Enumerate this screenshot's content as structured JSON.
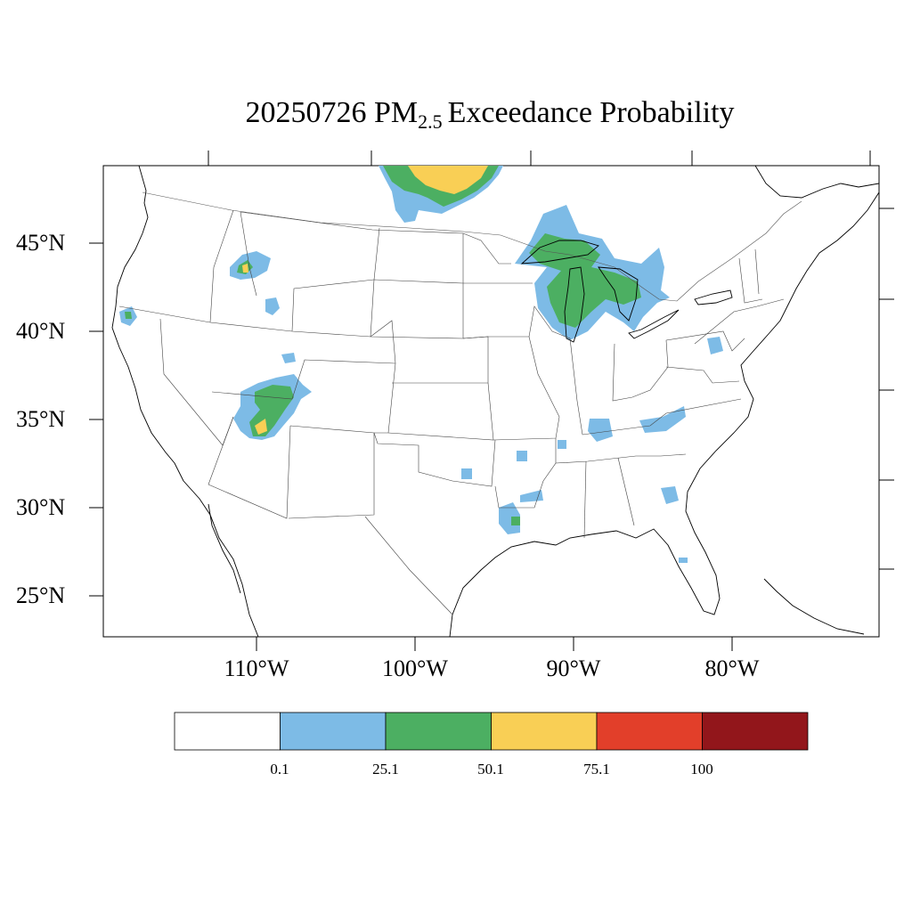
{
  "title": {
    "date": "20250726",
    "species": "PM",
    "subscript": "2.5",
    "rest": "Exceedance Probability"
  },
  "lat_labels": [
    "45°N",
    "40°N",
    "35°N",
    "30°N",
    "25°N"
  ],
  "lon_labels": [
    "110°W",
    "100°W",
    "90°W",
    "80°W"
  ],
  "colorbar": {
    "colors": [
      "#ffffff",
      "#7dbbe6",
      "#4caf62",
      "#f9cf55",
      "#e23f2a",
      "#92161b"
    ],
    "labels": [
      "0.1",
      "25.1",
      "50.1",
      "75.1",
      "100"
    ]
  },
  "legend_bins": [
    {
      "range": "0–0.1",
      "color": "#ffffff"
    },
    {
      "range": "0.1–25.1",
      "color": "#7dbbe6"
    },
    {
      "range": "25.1–50.1",
      "color": "#4caf62"
    },
    {
      "range": "50.1–75.1",
      "color": "#f9cf55"
    },
    {
      "range": "75.1–100",
      "color": "#e23f2a"
    },
    {
      "range": ">100",
      "color": "#92161b"
    }
  ]
}
